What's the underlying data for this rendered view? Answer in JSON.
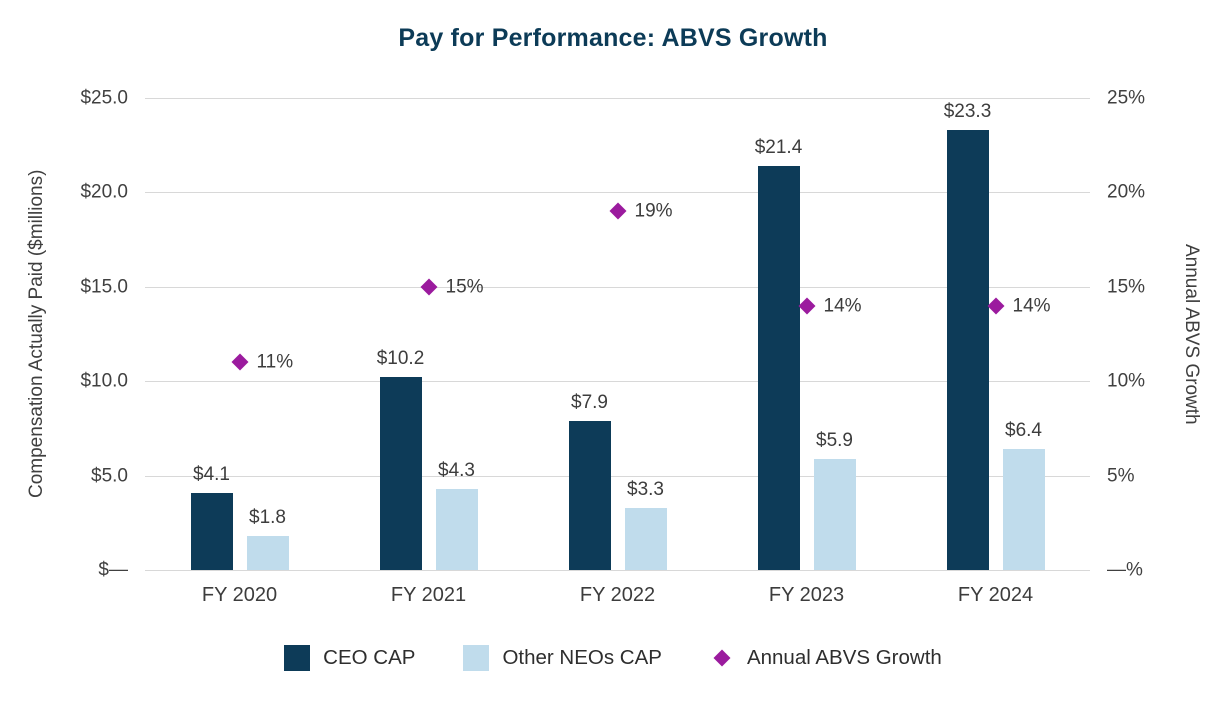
{
  "title": "Pay for Performance: ABVS Growth",
  "colors": {
    "title": "#0c3b57",
    "ceo_bar": "#0d3b58",
    "neo_bar": "#c0dcec",
    "diamond": "#9b1b9e",
    "gridline": "#d8d8d8",
    "text": "#3d3d3d"
  },
  "chart_data": {
    "type": "bar",
    "title": "Pay for Performance: ABVS Growth",
    "categories": [
      "FY 2020",
      "FY 2021",
      "FY 2022",
      "FY 2023",
      "FY 2024"
    ],
    "series": [
      {
        "name": "CEO CAP",
        "type": "bar",
        "color": "#0d3b58",
        "values": [
          4.1,
          10.2,
          7.9,
          21.4,
          23.3
        ],
        "labels": [
          "$4.1",
          "$10.2",
          "$7.9",
          "$21.4",
          "$23.3"
        ]
      },
      {
        "name": "Other NEOs CAP",
        "type": "bar",
        "color": "#c0dcec",
        "values": [
          1.8,
          4.3,
          3.3,
          5.9,
          6.4
        ],
        "labels": [
          "$1.8",
          "$4.3",
          "$3.3",
          "$5.9",
          "$6.4"
        ]
      },
      {
        "name": "Annual ABVS Growth",
        "type": "scatter-diamond",
        "color": "#9b1b9e",
        "values": [
          11,
          15,
          19,
          14,
          14
        ],
        "labels": [
          "11%",
          "15%",
          "19%",
          "14%",
          "14%"
        ]
      }
    ],
    "left_axis": {
      "label": "Compensation Actually Paid ($millions)",
      "min": 0,
      "max": 25,
      "ticks": [
        "$25.0",
        "$20.0",
        "$15.0",
        "$10.0",
        "$5.0",
        "$—"
      ]
    },
    "right_axis": {
      "label": "Annual ABVS Growth",
      "min": 0,
      "max": 25,
      "ticks": [
        "25%",
        "20%",
        "15%",
        "10%",
        "5%",
        "—%"
      ]
    },
    "grid": "horizontal",
    "legend_position": "bottom"
  }
}
